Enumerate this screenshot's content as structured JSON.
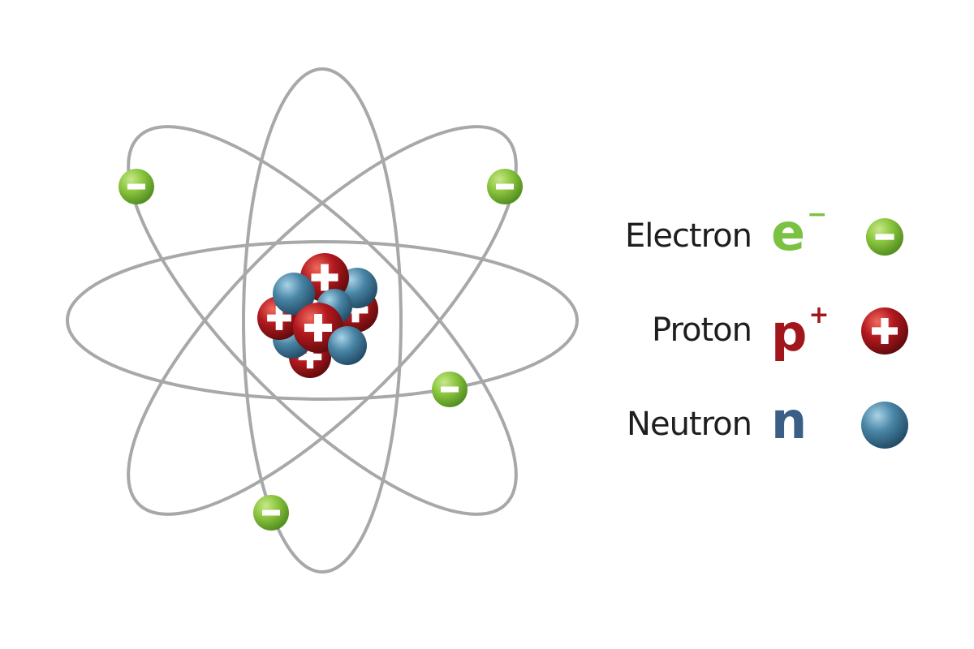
{
  "legend": {
    "items": [
      {
        "label": "Electron",
        "symbol": "e",
        "charge": "−",
        "symbol_color": "#7cc242",
        "swatch_sign": "−",
        "kind": "electron"
      },
      {
        "label": "Proton",
        "symbol": "p",
        "charge": "+",
        "symbol_color": "#a1161b",
        "swatch_sign": "+",
        "kind": "proton"
      },
      {
        "label": "Neutron",
        "symbol": "n",
        "charge": "",
        "symbol_color": "#3b5e86",
        "swatch_sign": "",
        "kind": "neutron"
      }
    ]
  },
  "colors": {
    "orbit": "#a7a8aa",
    "electron": "#8cc63f",
    "proton": "#b3191e",
    "neutron": "#4a86a6",
    "label_text": "#1e1e1e"
  },
  "atom": {
    "orbit_count": 4,
    "electron_count": 4,
    "proton_sign": "+",
    "electron_sign": "−"
  }
}
